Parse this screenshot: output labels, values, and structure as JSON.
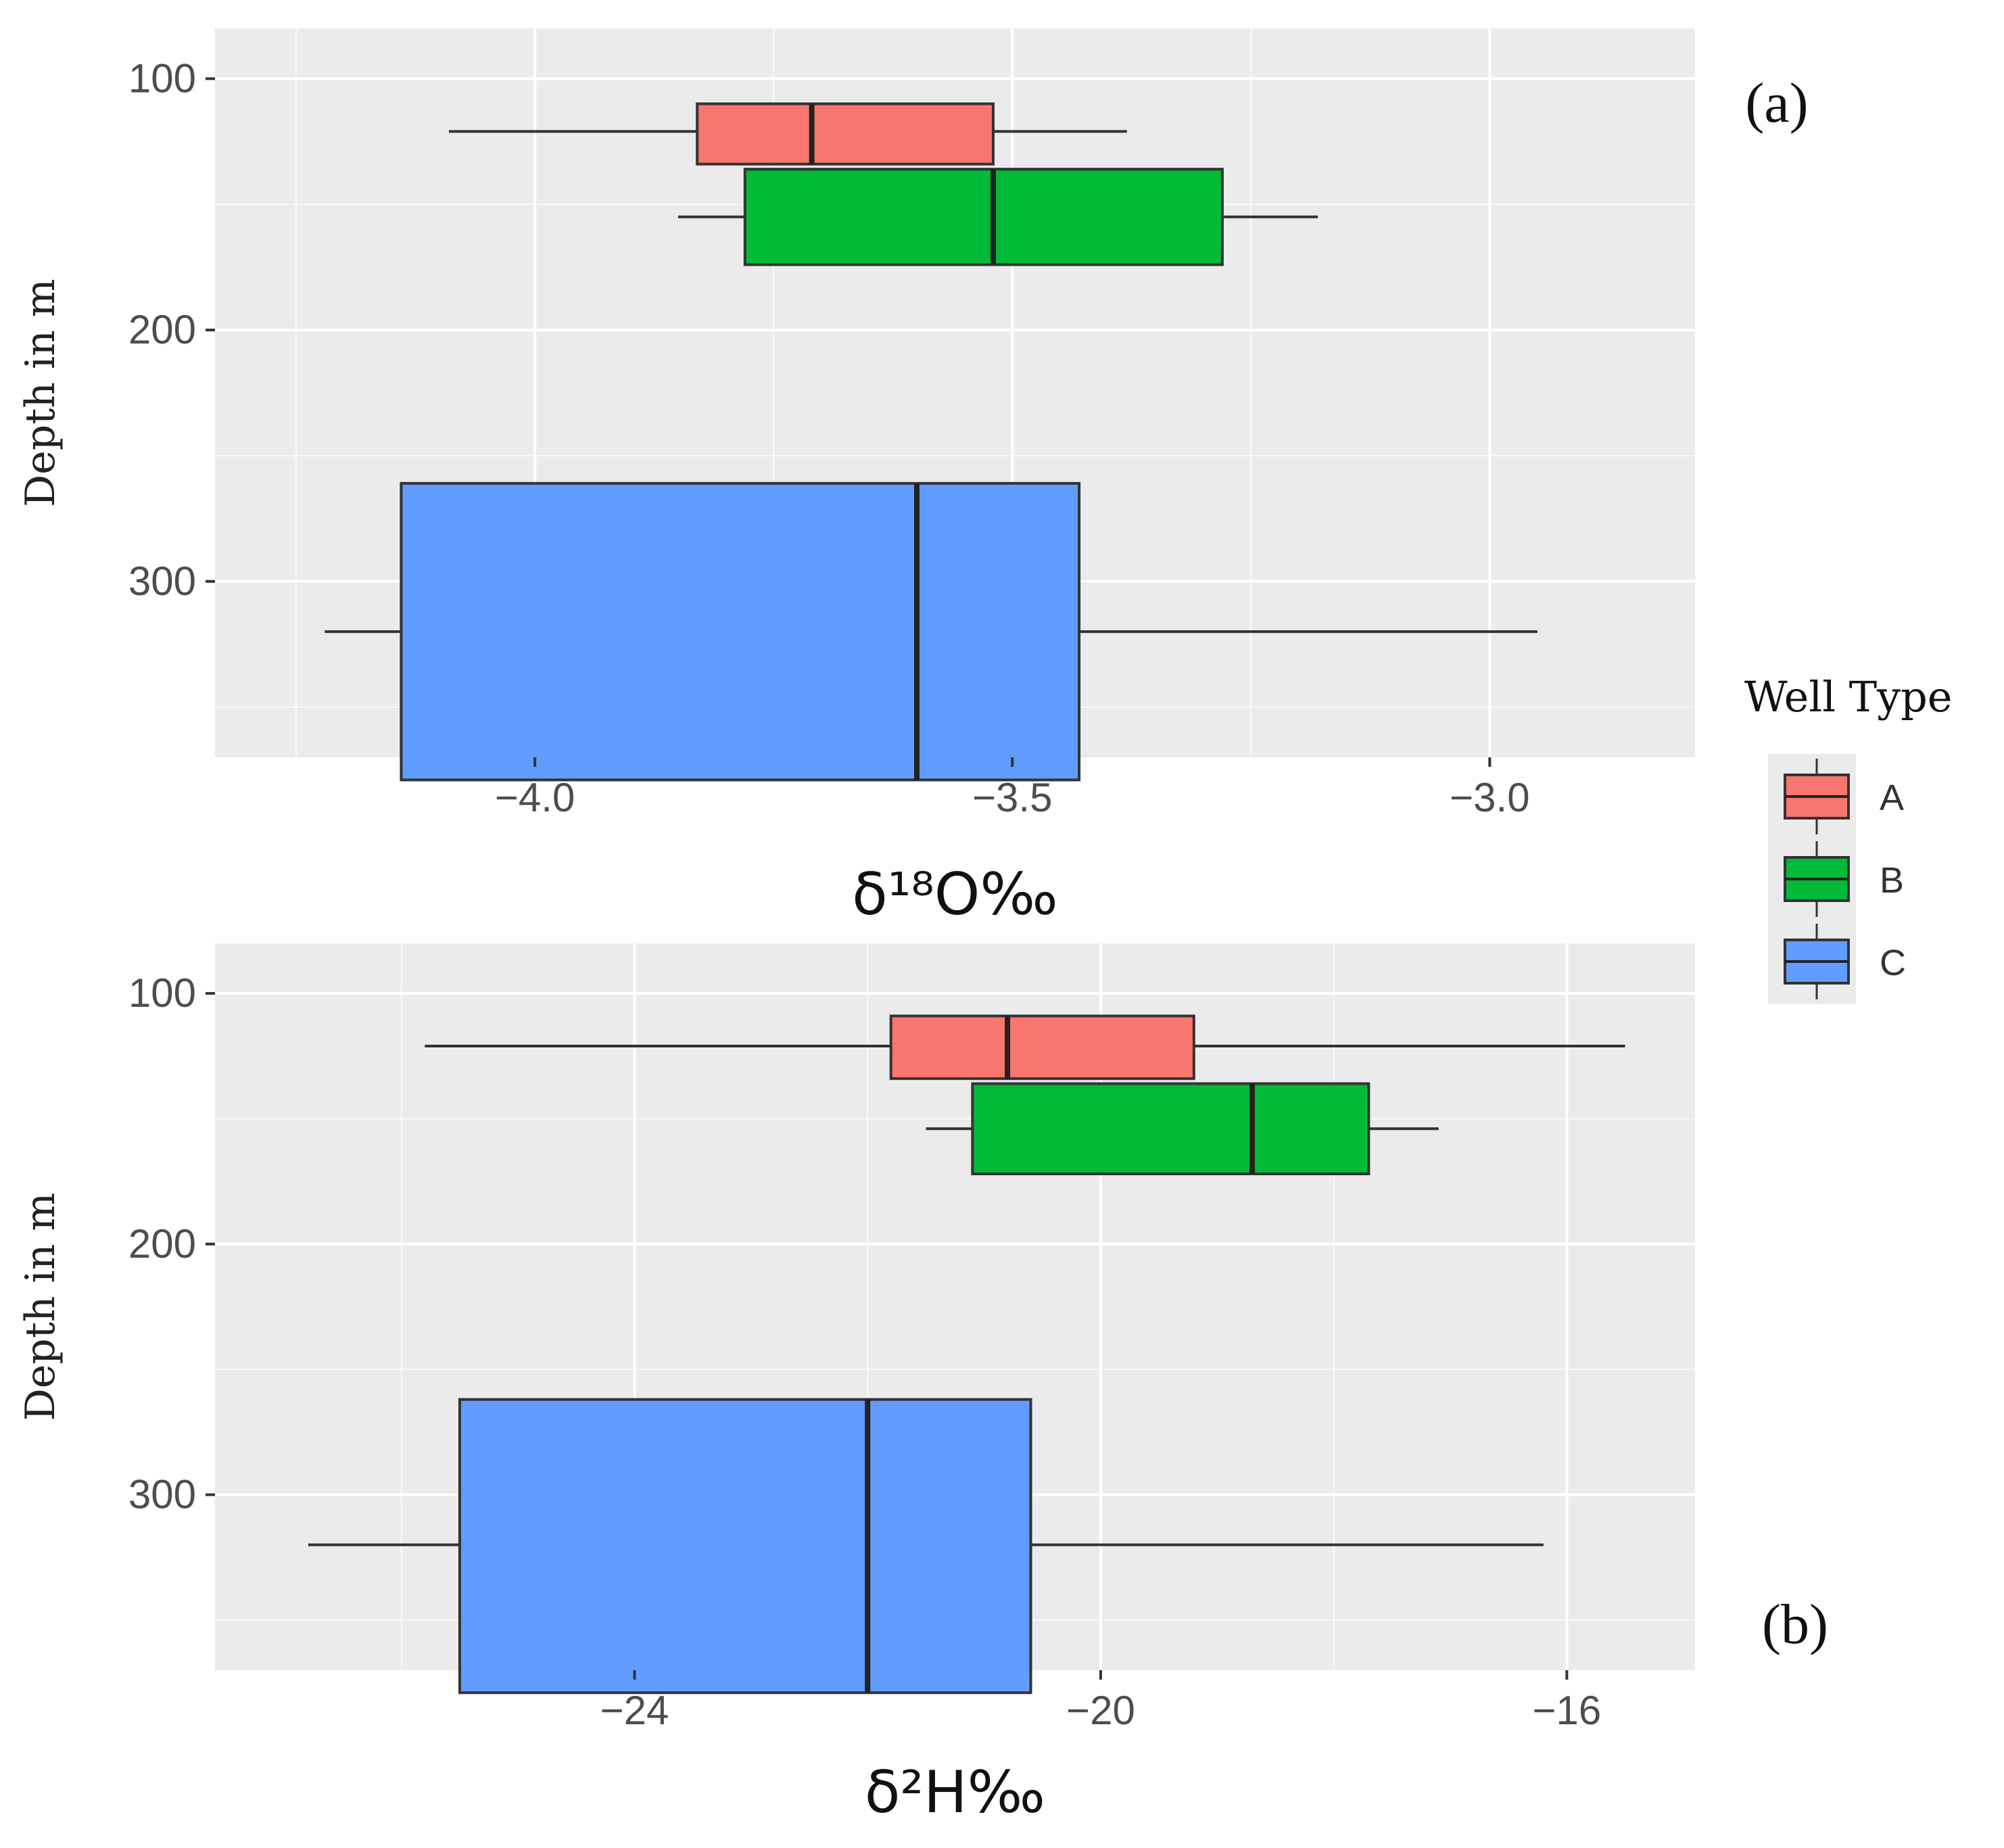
{
  "chart_data": [
    {
      "type": "boxplot",
      "panel_label": "(a)",
      "orientation": "horizontal",
      "xlabel": "δ¹⁸O‰",
      "ylabel": "Depth in m",
      "xlim": [
        -4.335,
        -2.785
      ],
      "ylim": [
        80,
        370
      ],
      "x_ticks": [
        -4.0,
        -3.5,
        -3.0
      ],
      "x_tick_labels": [
        "−4.0",
        "−3.5",
        "−3.0"
      ],
      "y_ticks": [
        100,
        200,
        300
      ],
      "y_tick_labels": [
        "100",
        "200",
        "300"
      ],
      "grid": true,
      "series": [
        {
          "name": "A",
          "color": "#F8766D",
          "y_top": 110,
          "y_bottom": 134,
          "whisker_y": 121,
          "whisker_low": -4.09,
          "q1": -3.83,
          "median": -3.71,
          "q3": -3.52,
          "whisker_high": -3.38
        },
        {
          "name": "B",
          "color": "#00BA38",
          "y_top": 136,
          "y_bottom": 174,
          "whisker_y": 155,
          "whisker_low": -3.85,
          "q1": -3.78,
          "median": -3.52,
          "q3": -3.28,
          "whisker_high": -3.18
        },
        {
          "name": "C",
          "color": "#619CFF",
          "y_top": 261,
          "y_bottom": 379,
          "whisker_y": 320,
          "whisker_low": -4.22,
          "q1": -4.14,
          "median": -3.6,
          "q3": -3.43,
          "whisker_high": -2.95
        }
      ]
    },
    {
      "type": "boxplot",
      "panel_label": "(b)",
      "orientation": "horizontal",
      "xlabel": "δ²H‰",
      "ylabel": "Depth in m",
      "xlim": [
        -27.6,
        -14.9
      ],
      "ylim": [
        80,
        370
      ],
      "x_ticks": [
        -24,
        -20,
        -16
      ],
      "x_tick_labels": [
        "−24",
        "−20",
        "−16"
      ],
      "y_ticks": [
        100,
        200,
        300
      ],
      "y_tick_labels": [
        "100",
        "200",
        "300"
      ],
      "grid": true,
      "series": [
        {
          "name": "A",
          "color": "#F8766D",
          "y_top": 109,
          "y_bottom": 134,
          "whisker_y": 121,
          "whisker_low": -25.8,
          "q1": -21.8,
          "median": -20.8,
          "q3": -19.2,
          "whisker_high": -15.5
        },
        {
          "name": "B",
          "color": "#00BA38",
          "y_top": 136,
          "y_bottom": 172,
          "whisker_y": 154,
          "whisker_low": -21.5,
          "q1": -21.1,
          "median": -18.7,
          "q3": -17.7,
          "whisker_high": -17.1
        },
        {
          "name": "C",
          "color": "#619CFF",
          "y_top": 262,
          "y_bottom": 379,
          "whisker_y": 320,
          "whisker_low": -26.8,
          "q1": -25.5,
          "median": -22.0,
          "q3": -20.6,
          "whisker_high": -16.2
        }
      ]
    }
  ],
  "legend": {
    "title": "Well Type",
    "items": [
      {
        "label": "A",
        "color": "#F8766D"
      },
      {
        "label": "B",
        "color": "#00BA38"
      },
      {
        "label": "C",
        "color": "#619CFF"
      }
    ]
  },
  "colors": {
    "panel_bg": "#EBEBEB",
    "grid_major": "#FFFFFF",
    "stroke": "#333333"
  }
}
